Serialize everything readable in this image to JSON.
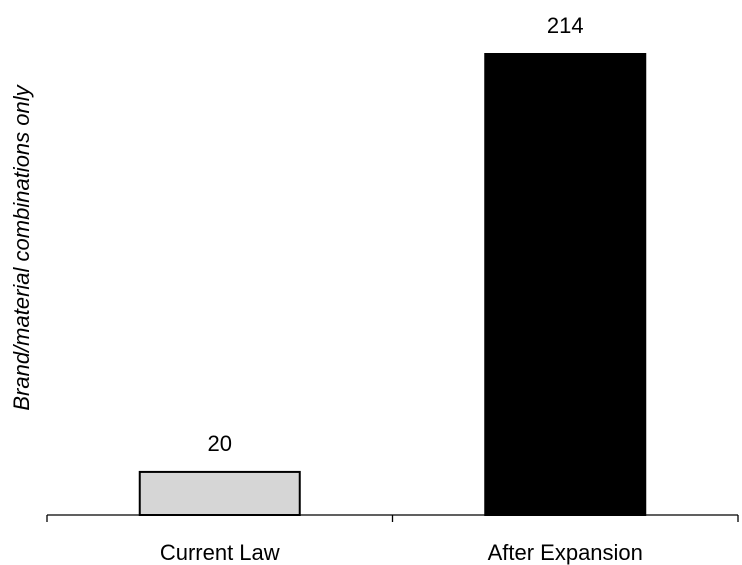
{
  "chart_data": {
    "type": "bar",
    "categories": [
      "Current Law",
      "After Expansion"
    ],
    "values": [
      20,
      214
    ],
    "data_labels": [
      "20",
      "214"
    ],
    "title": "",
    "xlabel": "",
    "ylabel": "Brand/material combinations only",
    "ylim": [
      0,
      214
    ],
    "grid": false,
    "legend": "none",
    "colors": [
      "#d6d6d6",
      "#000000"
    ],
    "border_color": "#000000"
  }
}
